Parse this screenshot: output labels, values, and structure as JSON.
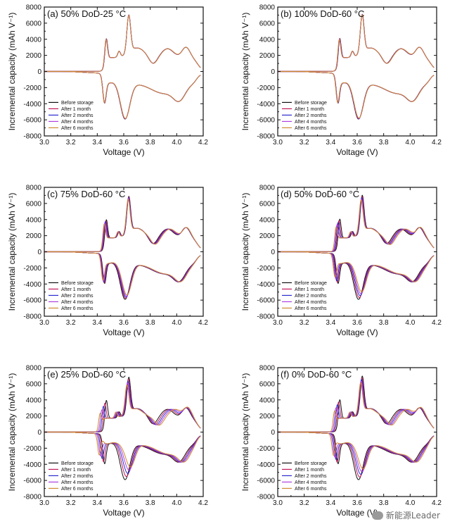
{
  "watermark": "新能源Leader",
  "chart_data": [
    {
      "type": "line",
      "title": "(a) 50% DoD-25 °C",
      "xlabel": "Voltage (V)",
      "ylabel": "Incremental capacity (mAh V⁻¹)",
      "xlim": [
        3.0,
        4.2
      ],
      "ylim": [
        -8000,
        8000
      ],
      "xticks": [
        "3.0",
        "3.2",
        "3.4",
        "3.6",
        "3.8",
        "4.0",
        "4.2"
      ],
      "yticks": [
        "-8000",
        "-6000",
        "-4000",
        "-2000",
        "0",
        "2000",
        "4000",
        "6000",
        "8000"
      ],
      "legend": [
        "Before storage",
        "After 1 month",
        "After 2 months",
        "After 4 months",
        "After 6 months"
      ],
      "spread": 0.05,
      "charge_peak": 6600,
      "discharge_trough": -5800
    },
    {
      "type": "line",
      "title": "(b) 100% DoD-60 °C",
      "xlabel": "Voltage (V)",
      "ylabel": "Incremental capacity (mAh V⁻¹)",
      "xlim": [
        3.0,
        4.2
      ],
      "ylim": [
        -8000,
        8000
      ],
      "xticks": [
        "3.0",
        "3.2",
        "3.4",
        "3.6",
        "3.8",
        "4.0",
        "4.2"
      ],
      "yticks": [
        "-8000",
        "-6000",
        "-4000",
        "-2000",
        "0",
        "2000",
        "4000",
        "6000",
        "8000"
      ],
      "legend": [
        "Before storage",
        "After 1 month",
        "After 2 months",
        "After 4 months",
        "After 6 months"
      ],
      "spread": 0.08,
      "charge_peak": 6700,
      "discharge_trough": -5800
    },
    {
      "type": "line",
      "title": "(c) 75% DoD-60 °C",
      "xlabel": "Voltage (V)",
      "ylabel": "Incremental capacity (mAh V⁻¹)",
      "xlim": [
        3.0,
        4.2
      ],
      "ylim": [
        -8000,
        8000
      ],
      "xticks": [
        "3.0",
        "3.2",
        "3.4",
        "3.6",
        "3.8",
        "4.0",
        "4.2"
      ],
      "yticks": [
        "-8000",
        "-6000",
        "-4000",
        "-2000",
        "0",
        "2000",
        "4000",
        "6000",
        "8000"
      ],
      "legend": [
        "Before storage",
        "After 1 month",
        "After 2 months",
        "After 4 months",
        "After 6 months"
      ],
      "spread": 0.35,
      "charge_peak": 6400,
      "discharge_trough": -5800
    },
    {
      "type": "line",
      "title": "(d) 50% DoD-60 °C",
      "xlabel": "Voltage (V)",
      "ylabel": "Incremental capacity (mAh V⁻¹)",
      "xlim": [
        3.0,
        4.2
      ],
      "ylim": [
        -8000,
        8000
      ],
      "xticks": [
        "3.0",
        "3.2",
        "3.4",
        "3.6",
        "3.8",
        "4.0",
        "4.2"
      ],
      "yticks": [
        "-8000",
        "-6000",
        "-4000",
        "-2000",
        "0",
        "2000",
        "4000",
        "6000",
        "8000"
      ],
      "legend": [
        "Before storage",
        "After 1 month",
        "After 2 months",
        "After 4 months",
        "After 6 months"
      ],
      "spread": 0.6,
      "charge_peak": 6600,
      "discharge_trough": -5800
    },
    {
      "type": "line",
      "title": "(e) 25% DoD-60 °C",
      "xlabel": "Voltage (V)",
      "ylabel": "Incremental capacity (mAh V⁻¹)",
      "xlim": [
        3.0,
        4.2
      ],
      "ylim": [
        -8000,
        8000
      ],
      "xticks": [
        "3.0",
        "3.2",
        "3.4",
        "3.6",
        "3.8",
        "4.0",
        "4.2"
      ],
      "yticks": [
        "-8000",
        "-6000",
        "-4000",
        "-2000",
        "0",
        "2000",
        "4000",
        "6000",
        "8000"
      ],
      "legend": [
        "Before storage",
        "After 1 month",
        "After 2 months",
        "After 4 months",
        "After 6 months"
      ],
      "spread": 1.0,
      "charge_peak": 6300,
      "discharge_trough": -5800
    },
    {
      "type": "line",
      "title": "(f) 0% DoD-60 °C",
      "xlabel": "Voltage (V)",
      "ylabel": "Incremental capacity (mAh V⁻¹)",
      "xlim": [
        3.0,
        4.2
      ],
      "ylim": [
        -8000,
        8000
      ],
      "xticks": [
        "3.0",
        "3.2",
        "3.4",
        "3.6",
        "3.8",
        "4.0",
        "4.2"
      ],
      "yticks": [
        "-8000",
        "-6000",
        "-4000",
        "-2000",
        "0",
        "2000",
        "4000",
        "6000",
        "8000"
      ],
      "legend": [
        "Before storage",
        "After 1 month",
        "After 2 months",
        "After 4 months",
        "After 6 months"
      ],
      "spread": 0.85,
      "charge_peak": 6500,
      "discharge_trough": -5800
    }
  ],
  "series_colors": [
    "#111111",
    "#c2185b",
    "#2b2bd0",
    "#b040e0",
    "#d08a30"
  ]
}
